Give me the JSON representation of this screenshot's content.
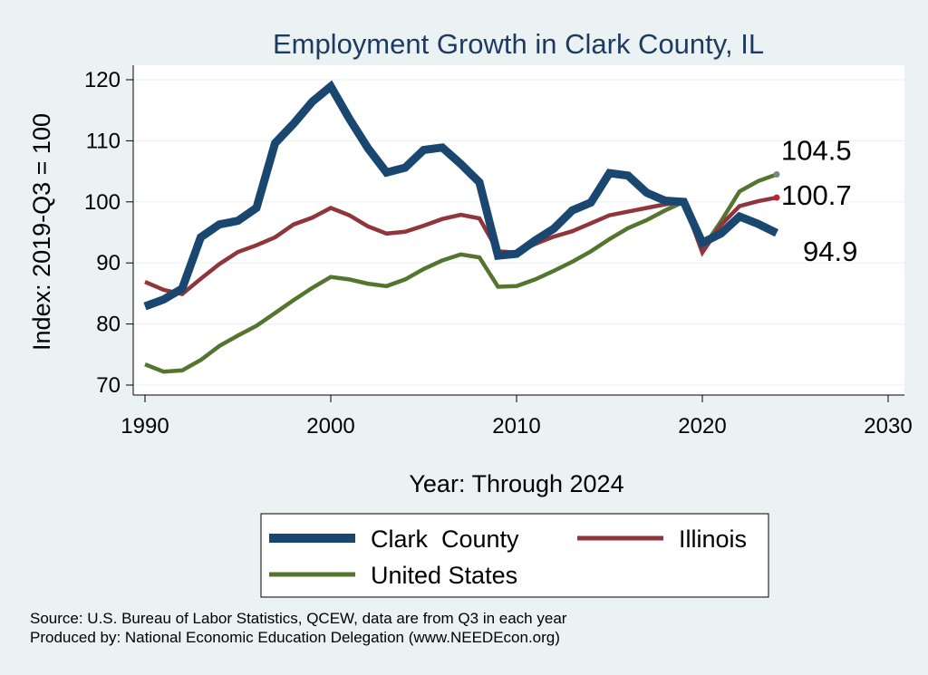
{
  "chart_data": {
    "type": "line",
    "title": "Employment Growth in Clark County, IL",
    "xlabel": "Year: Through 2024",
    "ylabel": "Index: 2019-Q3 = 100",
    "xlim": [
      1990,
      2030
    ],
    "ylim": [
      70,
      120
    ],
    "xticks": [
      "1990",
      "2000",
      "2010",
      "2020",
      "2030"
    ],
    "yticks": [
      "70",
      "80",
      "90",
      "100",
      "110",
      "120"
    ],
    "x": [
      1990,
      1991,
      1992,
      1993,
      1994,
      1995,
      1996,
      1997,
      1998,
      1999,
      2000,
      2001,
      2002,
      2003,
      2004,
      2005,
      2006,
      2007,
      2008,
      2009,
      2010,
      2011,
      2012,
      2013,
      2014,
      2015,
      2016,
      2017,
      2018,
      2019,
      2020,
      2021,
      2022,
      2023,
      2024
    ],
    "series": [
      {
        "name": "Clark  County",
        "color": "#1a476f",
        "values": [
          82.9,
          84.0,
          85.8,
          94.2,
          96.3,
          96.9,
          99.0,
          109.6,
          112.8,
          116.4,
          118.9,
          113.6,
          108.8,
          104.8,
          105.6,
          108.5,
          108.9,
          106.2,
          103.2,
          91.2,
          91.5,
          93.7,
          95.6,
          98.6,
          99.9,
          104.7,
          104.3,
          101.5,
          100.2,
          100.0,
          93.3,
          94.8,
          97.6,
          96.4,
          94.9
        ]
      },
      {
        "name": "Illinois",
        "color": "#90353b",
        "values": [
          86.9,
          85.6,
          84.9,
          87.4,
          89.8,
          91.8,
          92.9,
          94.2,
          96.3,
          97.4,
          99.0,
          97.8,
          96.0,
          94.8,
          95.1,
          96.1,
          97.2,
          97.9,
          97.3,
          91.9,
          91.7,
          93.1,
          94.3,
          95.2,
          96.5,
          97.8,
          98.4,
          99.0,
          99.6,
          100.0,
          91.7,
          96.2,
          99.3,
          100.1,
          100.7
        ]
      },
      {
        "name": "United States",
        "color": "#55752f",
        "values": [
          73.4,
          72.2,
          72.4,
          74.1,
          76.4,
          78.1,
          79.7,
          81.8,
          83.9,
          85.9,
          87.7,
          87.3,
          86.6,
          86.2,
          87.3,
          89.0,
          90.4,
          91.4,
          90.9,
          86.1,
          86.2,
          87.3,
          88.7,
          90.2,
          91.9,
          93.9,
          95.7,
          97.0,
          98.6,
          100.0,
          92.3,
          96.8,
          101.7,
          103.4,
          104.5
        ]
      }
    ],
    "end_labels": [
      "104.5",
      "100.7",
      "94.9"
    ],
    "grid": true,
    "legend_placement": "bottom"
  },
  "footnote": {
    "source": "Source: U.S. Bureau of Labor Statistics, QCEW, data are from Q3 in each year",
    "producer": "Produced by: National Economic Education Delegation (www.NEEDEcon.org)"
  }
}
